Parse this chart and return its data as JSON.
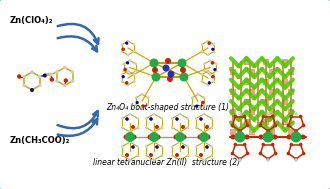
{
  "bg_color": "#ffffff",
  "border_color": "#5599cc",
  "label1": "Zn₄O₄ boat-shaped structure (1)",
  "label2": "linear tetranuclear Zn(II)  structure (2)",
  "text_zn1": "Zn(ClO₄)₂",
  "text_zn2": "Zn(CH₃COO)₂",
  "arrow_color": "#3366aa",
  "bond_color": "#ccaa00",
  "red": "#cc2200",
  "blue": "#0000bb",
  "gray": "#999999",
  "white_gray": "#cccccc",
  "zn_green": "#22aa44",
  "crystal_green": "#55cc00",
  "crystal_red": "#cc3300",
  "crystal_yellow": "#ccaa00",
  "label_fs": 5.5,
  "text_fs": 6.0
}
